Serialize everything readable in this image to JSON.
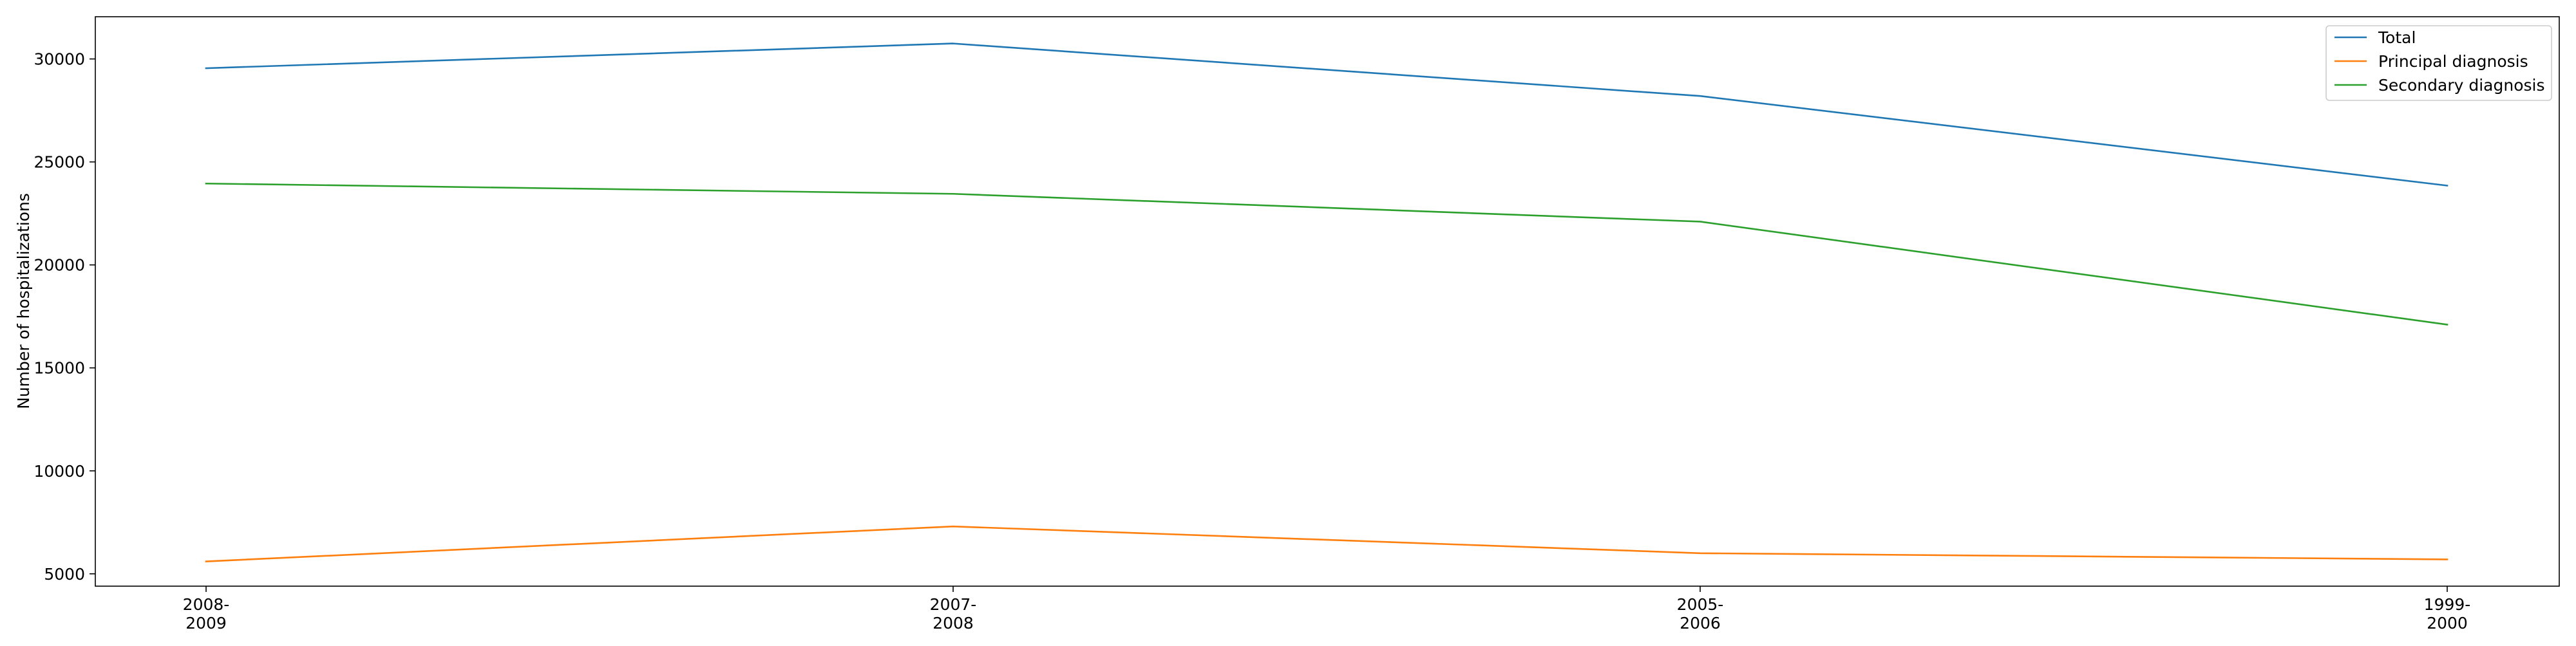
{
  "chart_data": {
    "type": "line",
    "title": "",
    "xlabel": "",
    "ylabel": "Number of hospitalizations",
    "categories": [
      "2008-\n2009",
      "2007-\n2008",
      "2005-\n2006",
      "1999-\n2000"
    ],
    "ylim": [
      4400,
      32050
    ],
    "yticks": [
      5000,
      10000,
      15000,
      20000,
      25000,
      30000
    ],
    "grid": false,
    "legend_position": "top-right",
    "series": [
      {
        "name": "Total",
        "color": "#1f77b4",
        "values": [
          29550,
          30750,
          28200,
          23850
        ]
      },
      {
        "name": "Principal diagnosis",
        "color": "#ff7f0e",
        "values": [
          5600,
          7300,
          6000,
          5700
        ]
      },
      {
        "name": "Secondary diagnosis",
        "color": "#2ca02c",
        "values": [
          23950,
          23450,
          22100,
          17100
        ]
      }
    ]
  }
}
